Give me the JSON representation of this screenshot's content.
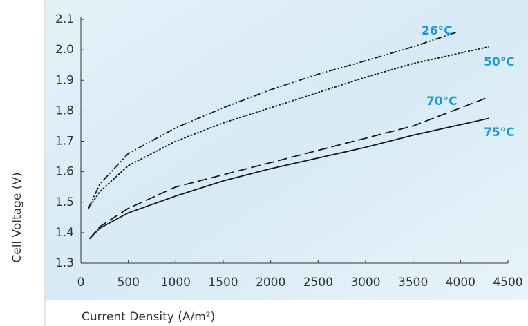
{
  "chart_data": {
    "type": "line",
    "ylabel": "Cell Voltage (V)",
    "xlabel": "Current Density (A/m²)",
    "xlim": [
      0,
      4500
    ],
    "xticks": [
      0,
      500,
      1000,
      1500,
      2000,
      2500,
      3000,
      3500,
      4000,
      4500
    ],
    "ylim": [
      1.3,
      2.1
    ],
    "yticks": [
      1.3,
      1.4,
      1.5,
      1.6,
      1.7,
      1.8,
      1.9,
      {
        "value": 2,
        "label": "2.0"
      },
      2.1
    ],
    "series": [
      {
        "name": "26°C",
        "color": "#1a1a1a",
        "dash": "10 3 2 3 2 3",
        "x": [
          80,
          200,
          500,
          1000,
          1500,
          2000,
          2500,
          3000,
          3500,
          3950
        ],
        "values": [
          1.48,
          1.56,
          1.66,
          1.744,
          1.81,
          1.869,
          1.92,
          1.964,
          2.01,
          2.057
        ]
      },
      {
        "name": "50°C",
        "color": "#1a1a1a",
        "dash": "3 2",
        "x": [
          80,
          200,
          500,
          1000,
          1500,
          2000,
          2500,
          3000,
          3500,
          4300
        ],
        "values": [
          1.48,
          1.535,
          1.62,
          1.7,
          1.76,
          1.81,
          1.86,
          1.91,
          1.955,
          2.01
        ]
      },
      {
        "name": "70°C",
        "color": "#1a1a1a",
        "dash": "14 6",
        "x": [
          90,
          200,
          500,
          1000,
          1500,
          2000,
          2500,
          3000,
          3500,
          4300
        ],
        "values": [
          1.38,
          1.42,
          1.48,
          1.55,
          1.59,
          1.63,
          1.67,
          1.71,
          1.75,
          1.845
        ]
      },
      {
        "name": "75°C",
        "color": "#1a1a1a",
        "dash": "",
        "x": [
          90,
          200,
          500,
          1000,
          1500,
          2000,
          2500,
          3000,
          3500,
          4300
        ],
        "values": [
          1.38,
          1.415,
          1.465,
          1.52,
          1.57,
          1.61,
          1.645,
          1.68,
          1.72,
          1.775
        ]
      }
    ],
    "label_color": "#1d9ad6"
  }
}
